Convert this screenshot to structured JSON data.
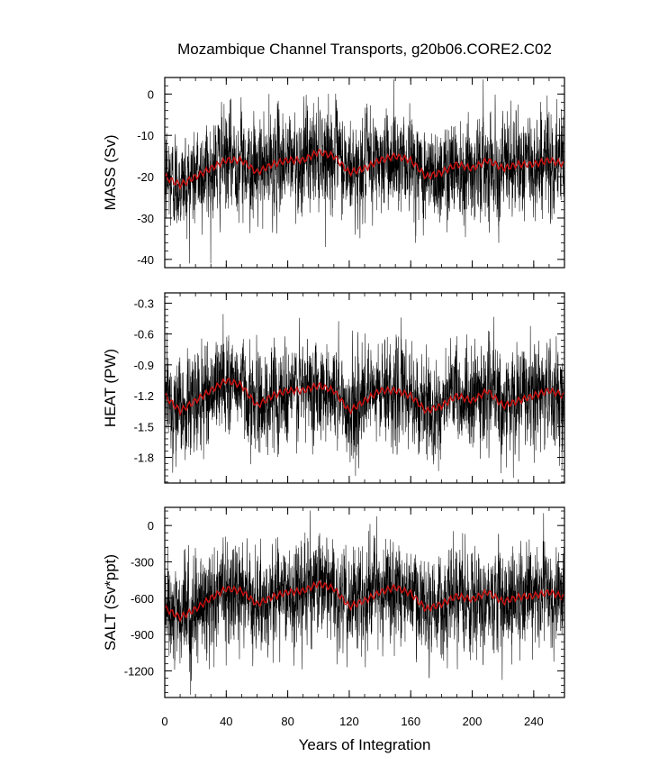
{
  "title": "Mozambique Channel Transports, g20b06.CORE2.C02",
  "colors": {
    "raw_line": "#000000",
    "smoothed_line": "#d01010",
    "frame": "#000000"
  },
  "chart_data": {
    "type": "line",
    "title": "Mozambique Channel Transports, g20b06.CORE2.C02",
    "xlabel": "Years of Integration",
    "xlim": [
      0,
      260
    ],
    "x_ticks": [
      0,
      40,
      80,
      120,
      160,
      200,
      240
    ],
    "x_tick_labels": [
      "0",
      "40",
      "80",
      "120",
      "160",
      "200",
      "240"
    ],
    "grid": false,
    "legend": "none",
    "panels": [
      {
        "name": "mass",
        "ylabel": "MASS (Sv)",
        "ylim": [
          -42,
          4
        ],
        "y_ticks": [
          0,
          -10,
          -20,
          -30,
          -40
        ],
        "y_tick_labels": [
          "0",
          "-10",
          "-20",
          "-30",
          "-40"
        ],
        "series": [
          {
            "name": "monthly",
            "kind": "raw",
            "mean": -18,
            "spread": 5.5,
            "clip": [
              -41,
              3.5
            ]
          },
          {
            "name": "annual",
            "kind": "smoothed",
            "x": [
              0,
              10,
              20,
              30,
              40,
              50,
              60,
              70,
              80,
              90,
              100,
              110,
              120,
              130,
              140,
              150,
              160,
              170,
              180,
              190,
              200,
              210,
              220,
              230,
              240,
              250,
              260
            ],
            "y": [
              -20,
              -22,
              -20,
              -18,
              -16,
              -16,
              -19,
              -17,
              -16,
              -16,
              -14,
              -15,
              -19,
              -18,
              -16,
              -15,
              -16,
              -20,
              -19,
              -17,
              -18,
              -16,
              -18,
              -17,
              -17,
              -16,
              -17
            ]
          }
        ]
      },
      {
        "name": "heat",
        "ylabel": "HEAT (PW)",
        "ylim": [
          -2.05,
          -0.2
        ],
        "y_ticks": [
          -0.3,
          -0.6,
          -0.9,
          -1.2,
          -1.5,
          -1.8
        ],
        "y_tick_labels": [
          "-0.3",
          "-0.6",
          "-0.9",
          "-1.2",
          "-1.5",
          "-1.8"
        ],
        "series": [
          {
            "name": "monthly",
            "kind": "raw",
            "mean": -1.2,
            "spread": 0.22,
            "clip": [
              -2.0,
              -0.22
            ]
          },
          {
            "name": "annual",
            "kind": "smoothed",
            "x": [
              0,
              10,
              20,
              30,
              40,
              50,
              60,
              70,
              80,
              90,
              100,
              110,
              120,
              130,
              140,
              150,
              160,
              170,
              180,
              190,
              200,
              210,
              220,
              230,
              240,
              250,
              260
            ],
            "y": [
              -1.2,
              -1.35,
              -1.25,
              -1.15,
              -1.05,
              -1.1,
              -1.3,
              -1.2,
              -1.15,
              -1.15,
              -1.1,
              -1.15,
              -1.35,
              -1.25,
              -1.15,
              -1.15,
              -1.2,
              -1.35,
              -1.3,
              -1.2,
              -1.25,
              -1.15,
              -1.3,
              -1.25,
              -1.2,
              -1.15,
              -1.2
            ]
          }
        ]
      },
      {
        "name": "salt",
        "ylabel": "SALT (Sv*ppt)",
        "ylim": [
          -1420,
          150
        ],
        "y_ticks": [
          0,
          -300,
          -600,
          -900,
          -1200
        ],
        "y_tick_labels": [
          "0",
          "-300",
          "-600",
          "-900",
          "-1200"
        ],
        "series": [
          {
            "name": "monthly",
            "kind": "raw",
            "mean": -600,
            "spread": 185,
            "clip": [
              -1400,
              130
            ]
          },
          {
            "name": "annual",
            "kind": "smoothed",
            "x": [
              0,
              10,
              20,
              30,
              40,
              50,
              60,
              70,
              80,
              90,
              100,
              110,
              120,
              130,
              140,
              150,
              160,
              170,
              180,
              190,
              200,
              210,
              220,
              230,
              240,
              250,
              260
            ],
            "y": [
              -680,
              -760,
              -690,
              -600,
              -520,
              -540,
              -650,
              -590,
              -550,
              -540,
              -480,
              -520,
              -670,
              -620,
              -550,
              -510,
              -560,
              -690,
              -650,
              -580,
              -610,
              -550,
              -630,
              -590,
              -580,
              -550,
              -590
            ]
          }
        ]
      }
    ]
  }
}
